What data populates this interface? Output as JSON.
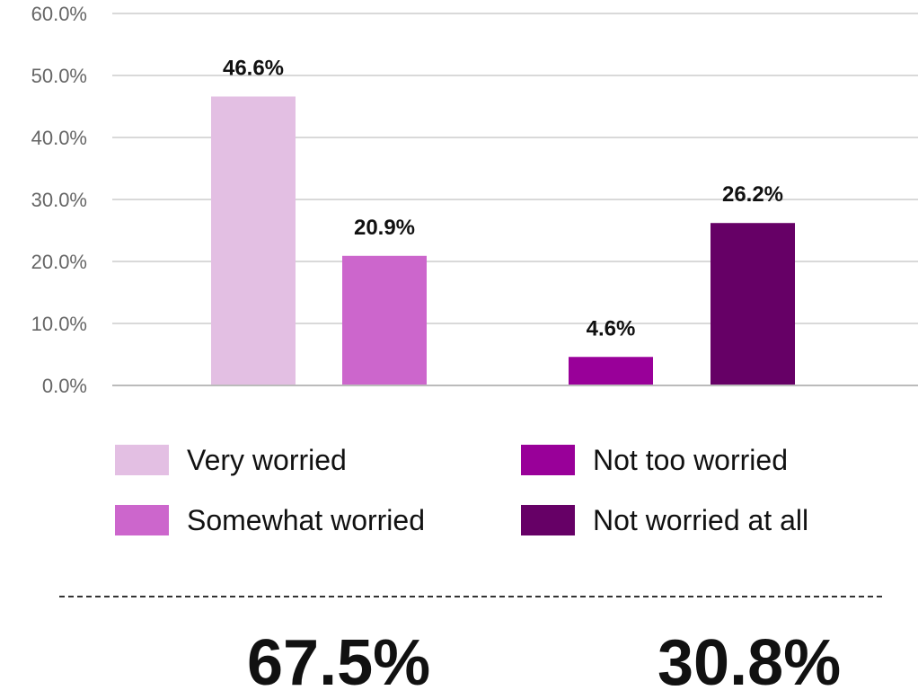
{
  "chart_data": {
    "type": "bar",
    "title": "",
    "xlabel": "",
    "ylabel": "",
    "ylim": [
      0,
      60
    ],
    "yticks": [
      "0.0%",
      "10.0%",
      "20.0%",
      "30.0%",
      "40.0%",
      "50.0%",
      "60.0%"
    ],
    "grid": true,
    "legend_position": "bottom",
    "categories": [
      "Very worried",
      "Somewhat worried",
      "Not too worried",
      "Not worried at all"
    ],
    "values": [
      46.6,
      20.9,
      4.6,
      26.2
    ],
    "data_labels": [
      "46.6%",
      "20.9%",
      "4.6%",
      "26.2%"
    ],
    "colors": [
      "#e3bfe3",
      "#cc66cc",
      "#990099",
      "#660066"
    ],
    "totals": [
      "67.5%",
      "30.8%"
    ]
  },
  "legend": [
    {
      "label": "Very worried",
      "color": "#e3bfe3"
    },
    {
      "label": "Somewhat worried",
      "color": "#cc66cc"
    },
    {
      "label": "Not too worried",
      "color": "#990099"
    },
    {
      "label": "Not worried at all",
      "color": "#660066"
    }
  ]
}
